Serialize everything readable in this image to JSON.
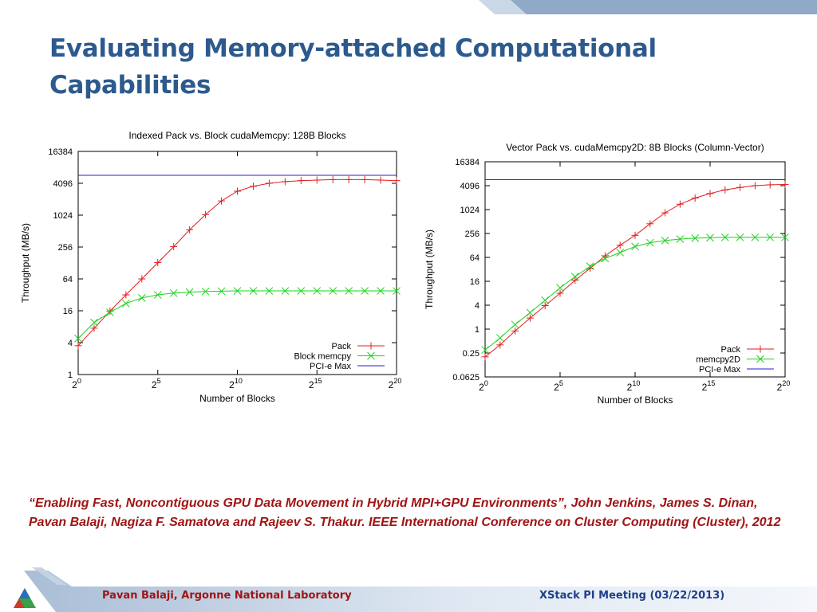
{
  "slide": {
    "title": "Evaluating Memory-attached Computational Capabilities",
    "citation": "“Enabling Fast, Noncontiguous GPU Data Movement in Hybrid MPI+GPU Environments”, John Jenkins, James S. Dinan, Pavan Balaji, Nagiza F. Samatova and Rajeev S. Thakur. IEEE International Conference on Cluster Computing (Cluster), 2012",
    "footer_left": "Pavan Balaji, Argonne National Laboratory",
    "footer_right": "XStack PI Meeting (03/22/2013)"
  },
  "colors": {
    "title": "#2d5a8e",
    "citation": "#a01515",
    "footer_left": "#a01515",
    "footer_right": "#1f3f8a",
    "pack": "#e02020",
    "memcpy": "#20d020",
    "pcie": "#2020d0"
  },
  "chart_data": [
    {
      "type": "line",
      "title": "Indexed Pack vs. Block cudaMemcpy: 128B Blocks",
      "xlabel": "Number of Blocks",
      "ylabel": "Throughput (MB/s)",
      "x_scale": "log2",
      "y_scale": "log",
      "xlim": [
        1,
        1048576
      ],
      "ylim": [
        1,
        16384
      ],
      "x_ticks": [
        1,
        32,
        1024,
        32768,
        1048576
      ],
      "x_tick_bases": [
        "2",
        "2",
        "2",
        "2",
        "2"
      ],
      "x_tick_exps": [
        "0",
        "5",
        "10",
        "15",
        "20"
      ],
      "y_ticks": [
        1,
        4,
        16,
        64,
        256,
        1024,
        4096,
        16384
      ],
      "y_tick_labels": [
        "1",
        "4",
        "16",
        "64",
        "256",
        "1024",
        "4096",
        "16384"
      ],
      "grid": false,
      "legend_position": "bottom-right",
      "series": [
        {
          "name": "Pack",
          "marker": "plus",
          "x": [
            1,
            2,
            4,
            8,
            16,
            32,
            64,
            128,
            256,
            512,
            1024,
            2048,
            4096,
            8192,
            16384,
            32768,
            65536,
            131072,
            262144,
            524288,
            1048576
          ],
          "y": [
            3.5,
            7.5,
            15.8,
            32,
            64,
            130,
            260,
            540,
            1050,
            1900,
            2900,
            3600,
            4100,
            4400,
            4600,
            4700,
            4800,
            4800,
            4800,
            4700,
            4600
          ]
        },
        {
          "name": "Block memcpy",
          "marker": "cross",
          "x": [
            1,
            2,
            4,
            8,
            16,
            32,
            64,
            128,
            256,
            512,
            1024,
            2048,
            4096,
            8192,
            16384,
            32768,
            65536,
            131072,
            262144,
            524288,
            1048576
          ],
          "y": [
            4.8,
            9.6,
            15,
            22,
            28,
            32,
            34.5,
            36,
            37,
            37.5,
            38,
            38,
            38,
            38,
            38,
            38,
            38,
            38,
            38,
            38,
            38
          ]
        },
        {
          "name": "PCI-e Max",
          "marker": "none",
          "x": [
            1,
            1048576
          ],
          "y": [
            5800,
            5800
          ]
        }
      ]
    },
    {
      "type": "line",
      "title": "Vector Pack vs. cudaMemcpy2D: 8B Blocks (Column-Vector)",
      "xlabel": "Number of Blocks",
      "ylabel": "Throughput (MB/s)",
      "x_scale": "log2",
      "y_scale": "log",
      "xlim": [
        1,
        1048576
      ],
      "ylim": [
        0.0625,
        16384
      ],
      "x_ticks": [
        1,
        32,
        1024,
        32768,
        1048576
      ],
      "x_tick_bases": [
        "2",
        "2",
        "2",
        "2",
        "2"
      ],
      "x_tick_exps": [
        "0",
        "5",
        "10",
        "15",
        "20"
      ],
      "y_ticks": [
        0.0625,
        0.25,
        1,
        4,
        16,
        64,
        256,
        1024,
        4096,
        16384
      ],
      "y_tick_labels": [
        "0.0625",
        "0.25",
        "1",
        "4",
        "16",
        "64",
        "256",
        "1024",
        "4096",
        "16384"
      ],
      "grid": false,
      "legend_position": "bottom-right",
      "series": [
        {
          "name": "Pack",
          "marker": "plus",
          "x": [
            1,
            2,
            4,
            8,
            16,
            32,
            64,
            128,
            256,
            512,
            1024,
            2048,
            4096,
            8192,
            16384,
            32768,
            65536,
            131072,
            262144,
            524288,
            1048576
          ],
          "y": [
            0.2,
            0.4,
            0.9,
            1.9,
            3.9,
            8,
            17,
            34,
            70,
            130,
            230,
            450,
            850,
            1400,
            2000,
            2600,
            3200,
            3700,
            4100,
            4300,
            4400
          ]
        },
        {
          "name": "memcpy2D",
          "marker": "cross",
          "x": [
            1,
            2,
            4,
            8,
            16,
            32,
            64,
            128,
            256,
            512,
            1024,
            2048,
            4096,
            8192,
            16384,
            32768,
            65536,
            131072,
            262144,
            524288,
            1048576
          ],
          "y": [
            0.3,
            0.6,
            1.3,
            2.6,
            5.3,
            11,
            21,
            38,
            60,
            85,
            120,
            150,
            170,
            185,
            195,
            200,
            205,
            205,
            205,
            205,
            205
          ]
        },
        {
          "name": "PCI-e Max",
          "marker": "none",
          "x": [
            1,
            1048576
          ],
          "y": [
            5800,
            5800
          ]
        }
      ]
    }
  ]
}
